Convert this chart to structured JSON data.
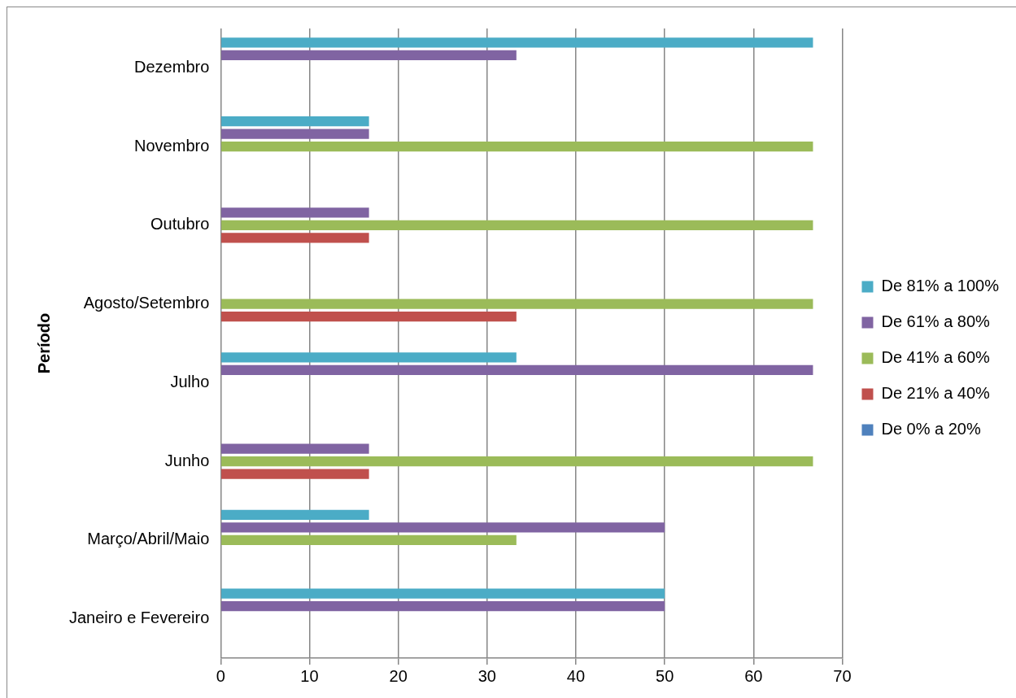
{
  "chart_data": {
    "type": "bar",
    "orientation": "horizontal",
    "ylabel": "Período",
    "categories": [
      "Dezembro",
      "Novembro",
      "Outubro",
      "Agosto/Setembro",
      "Julho",
      "Junho",
      "Março/Abril/Maio",
      "Janeiro e Fevereiro"
    ],
    "series": [
      {
        "name": "De 81% a 100%",
        "color": "#4bacc6",
        "values": [
          66.7,
          16.7,
          0,
          0,
          33.3,
          0,
          16.7,
          50
        ]
      },
      {
        "name": "De 61% a 80%",
        "color": "#8064a2",
        "values": [
          33.3,
          16.7,
          16.7,
          0,
          66.7,
          16.7,
          50,
          50
        ]
      },
      {
        "name": "De 41% a 60%",
        "color": "#9bbb59",
        "values": [
          0,
          66.7,
          66.7,
          66.7,
          0,
          66.7,
          33.3,
          0
        ]
      },
      {
        "name": "De 21% a 40%",
        "color": "#c0504d",
        "values": [
          0,
          0,
          16.7,
          33.3,
          0,
          16.7,
          0,
          0
        ]
      },
      {
        "name": "De 0% a 20%",
        "color": "#4f81bd",
        "values": [
          0,
          0,
          0,
          0,
          0,
          0,
          0,
          0
        ]
      }
    ],
    "xlim": [
      0,
      70
    ],
    "xticks": [
      0,
      10,
      20,
      30,
      40,
      50,
      60,
      70
    ],
    "grid": "x",
    "legend": "right"
  }
}
